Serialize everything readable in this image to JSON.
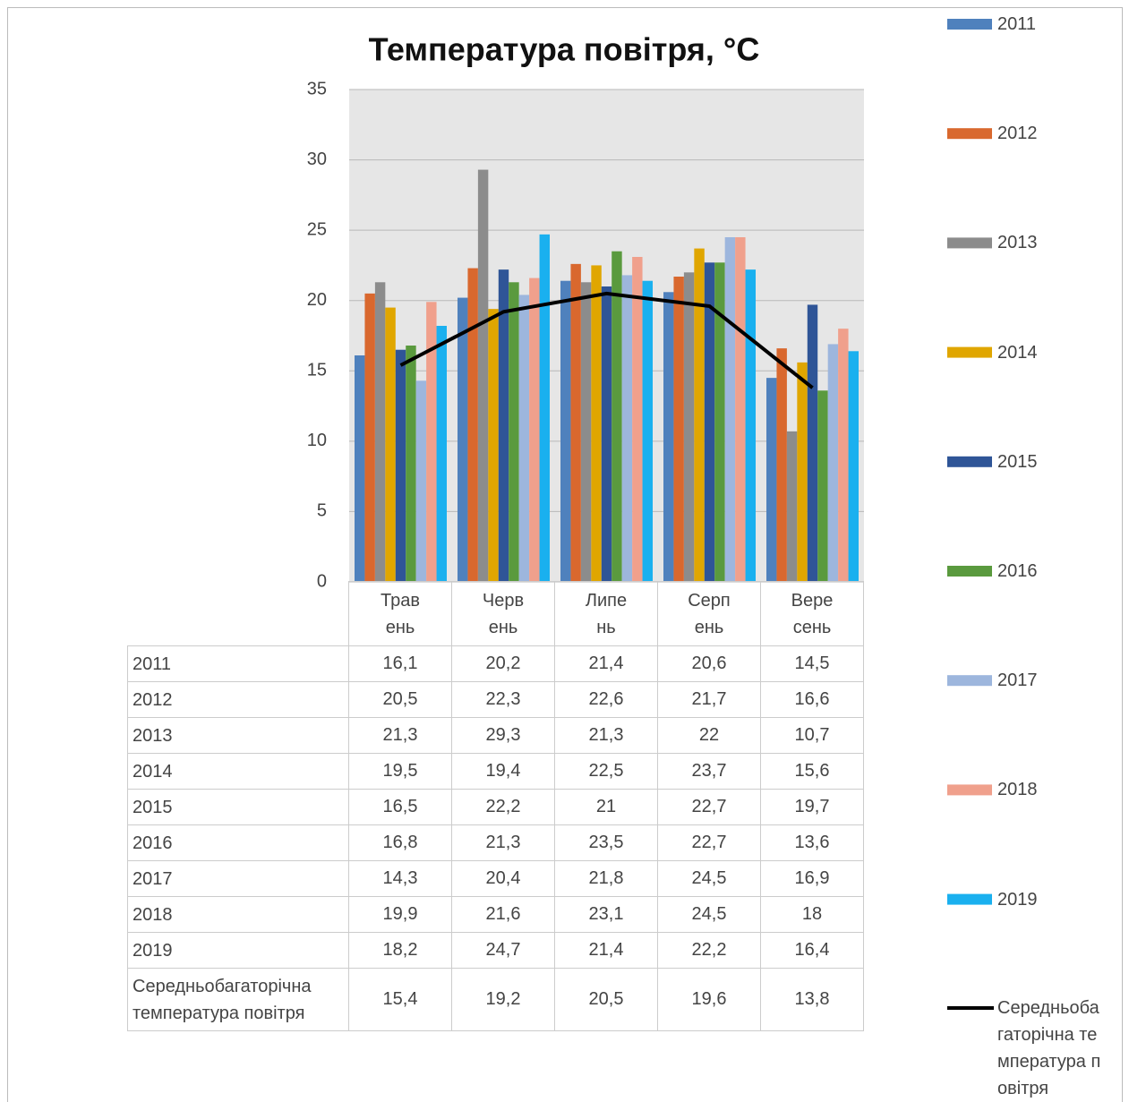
{
  "chart_data": {
    "type": "bar",
    "title": "Температура повітря, °С",
    "categories": [
      "Травень",
      "Червень",
      "Липень",
      "Серпень",
      "Вересень"
    ],
    "ylim": [
      0,
      35
    ],
    "yticks": [
      0,
      5,
      10,
      15,
      20,
      25,
      30,
      35
    ],
    "grid": true,
    "legend": "right",
    "series": [
      {
        "name": "2011",
        "color": "#4f81bd",
        "values": [
          16.1,
          20.2,
          21.4,
          20.6,
          14.5
        ],
        "value_labels": [
          "16,1",
          "20,2",
          "21,4",
          "20,6",
          "14,5"
        ]
      },
      {
        "name": "2012",
        "color": "#d9682e",
        "values": [
          20.5,
          22.3,
          22.6,
          21.7,
          16.6
        ],
        "value_labels": [
          "20,5",
          "22,3",
          "22,6",
          "21,7",
          "16,6"
        ]
      },
      {
        "name": "2013",
        "color": "#8c8c8c",
        "values": [
          21.3,
          29.3,
          21.3,
          22,
          10.7
        ],
        "value_labels": [
          "21,3",
          "29,3",
          "21,3",
          "22",
          "10,7"
        ]
      },
      {
        "name": "2014",
        "color": "#e0a600",
        "values": [
          19.5,
          19.4,
          22.5,
          23.7,
          15.6
        ],
        "value_labels": [
          "19,5",
          "19,4",
          "22,5",
          "23,7",
          "15,6"
        ]
      },
      {
        "name": "2015",
        "color": "#2f5597",
        "values": [
          16.5,
          22.2,
          21,
          22.7,
          19.7
        ],
        "value_labels": [
          "16,5",
          "22,2",
          "21",
          "22,7",
          "19,7"
        ]
      },
      {
        "name": "2016",
        "color": "#5a9a3e",
        "values": [
          16.8,
          21.3,
          23.5,
          22.7,
          13.6
        ],
        "value_labels": [
          "16,8",
          "21,3",
          "23,5",
          "22,7",
          "13,6"
        ]
      },
      {
        "name": "2017",
        "color": "#9db6dd",
        "values": [
          14.3,
          20.4,
          21.8,
          24.5,
          16.9
        ],
        "value_labels": [
          "14,3",
          "20,4",
          "21,8",
          "24,5",
          "16,9"
        ]
      },
      {
        "name": "2018",
        "color": "#f0a08c",
        "values": [
          19.9,
          21.6,
          23.1,
          24.5,
          18
        ],
        "value_labels": [
          "19,9",
          "21,6",
          "23,1",
          "24,5",
          "18"
        ]
      },
      {
        "name": "2019",
        "color": "#1ab0ef",
        "values": [
          18.2,
          24.7,
          21.4,
          22.2,
          16.4
        ],
        "value_labels": [
          "18,2",
          "24,7",
          "21,4",
          "22,2",
          "16,4"
        ]
      },
      {
        "name": "Середньобагаторічна температура повітря",
        "type": "line",
        "color": "#000000",
        "values": [
          15.4,
          19.2,
          20.5,
          19.6,
          13.8
        ],
        "value_labels": [
          "15,4",
          "19,2",
          "20,5",
          "19,6",
          "13,8"
        ]
      }
    ]
  }
}
